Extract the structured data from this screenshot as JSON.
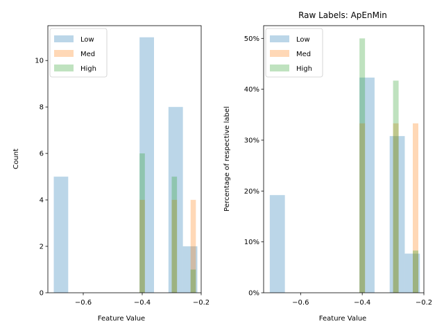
{
  "colors": {
    "Low": "#1f77b4",
    "Med": "#ff7f0e",
    "High": "#2ca02c"
  },
  "chart_data": [
    {
      "type": "bar",
      "title": "",
      "xlabel": "Feature Value",
      "ylabel": "Count",
      "xlim": [
        -0.72,
        -0.2
      ],
      "ylim": [
        0,
        11.5
      ],
      "xticks": [
        -0.6,
        -0.4,
        -0.2
      ],
      "xtick_labels": [
        "−0.6",
        "−0.4",
        "−0.2"
      ],
      "yticks": [
        0,
        2,
        4,
        6,
        8,
        10
      ],
      "ytick_labels": [
        "0",
        "2",
        "4",
        "6",
        "8",
        "10"
      ],
      "legend": {
        "position": "top-left",
        "entries": [
          "Low",
          "Med",
          "High"
        ]
      },
      "series": [
        {
          "name": "Low",
          "bars": [
            {
              "x0": -0.7,
              "x1": -0.651,
              "value": 5
            },
            {
              "x0": -0.409,
              "x1": -0.36,
              "value": 11
            },
            {
              "x0": -0.311,
              "x1": -0.262,
              "value": 8
            },
            {
              "x0": -0.262,
              "x1": -0.213,
              "value": 2
            }
          ]
        },
        {
          "name": "Med",
          "bars": [
            {
              "x0": -0.409,
              "x1": -0.391,
              "value": 4
            },
            {
              "x0": -0.3,
              "x1": -0.282,
              "value": 4
            },
            {
              "x0": -0.236,
              "x1": -0.218,
              "value": 4
            }
          ]
        },
        {
          "name": "High",
          "bars": [
            {
              "x0": -0.409,
              "x1": -0.391,
              "value": 6
            },
            {
              "x0": -0.3,
              "x1": -0.282,
              "value": 5
            },
            {
              "x0": -0.236,
              "x1": -0.218,
              "value": 1
            }
          ]
        }
      ]
    },
    {
      "type": "bar",
      "title": "Raw Labels: ApEnMin",
      "xlabel": "Feature Value",
      "ylabel": "Percentage of respective label",
      "xlim": [
        -0.72,
        -0.2
      ],
      "ylim": [
        0,
        52.5
      ],
      "xticks": [
        -0.6,
        -0.4,
        -0.2
      ],
      "xtick_labels": [
        "−0.6",
        "−0.4",
        "−0.2"
      ],
      "yticks": [
        0,
        10,
        20,
        30,
        40,
        50
      ],
      "ytick_labels": [
        "0%",
        "10%",
        "20%",
        "30%",
        "40%",
        "50%"
      ],
      "legend": {
        "position": "top-left",
        "entries": [
          "Low",
          "Med",
          "High"
        ]
      },
      "series": [
        {
          "name": "Low",
          "bars": [
            {
              "x0": -0.7,
              "x1": -0.651,
              "value": 19.2
            },
            {
              "x0": -0.409,
              "x1": -0.36,
              "value": 42.3
            },
            {
              "x0": -0.311,
              "x1": -0.262,
              "value": 30.8
            },
            {
              "x0": -0.262,
              "x1": -0.213,
              "value": 7.7
            }
          ]
        },
        {
          "name": "Med",
          "bars": [
            {
              "x0": -0.409,
              "x1": -0.391,
              "value": 33.3
            },
            {
              "x0": -0.3,
              "x1": -0.282,
              "value": 33.3
            },
            {
              "x0": -0.236,
              "x1": -0.218,
              "value": 33.3
            }
          ]
        },
        {
          "name": "High",
          "bars": [
            {
              "x0": -0.409,
              "x1": -0.391,
              "value": 50
            },
            {
              "x0": -0.3,
              "x1": -0.282,
              "value": 41.7
            },
            {
              "x0": -0.236,
              "x1": -0.218,
              "value": 8.3
            }
          ]
        }
      ]
    }
  ]
}
